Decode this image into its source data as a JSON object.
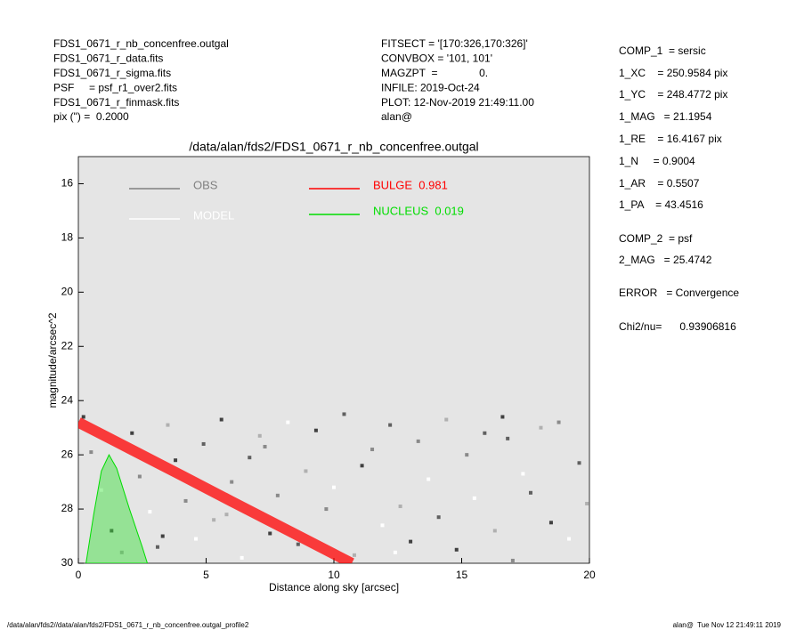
{
  "header": {
    "left": [
      "FDS1_0671_r_nb_concenfree.outgal",
      "FDS1_0671_r_data.fits",
      "FDS1_0671_r_sigma.fits",
      "PSF     = psf_r1_over2.fits",
      "FDS1_0671_r_finmask.fits",
      "pix (\") =  0.2000"
    ],
    "middle": [
      "FITSECT = '[170:326,170:326]'",
      "CONVBOX = '101, 101'",
      "MAGZPT  =              0.",
      "INFILE: 2019-Oct-24",
      "PLOT: 12-Nov-2019 21:49:11.00",
      "alan@"
    ],
    "right": [
      "COMP_1  = sersic",
      "1_XC    = 250.9584 pix",
      "1_YC    = 248.4772 pix",
      "1_MAG   = 21.1954",
      "1_RE    = 16.4167 pix",
      "1_N     = 0.9004",
      "1_AR    = 0.5507",
      "1_PA    = 43.4516",
      "COMP_2  = psf",
      "2_MAG   = 25.4742",
      "ERROR   = Convergence",
      "Chi2/nu=      0.93906816"
    ]
  },
  "footer": {
    "left": "/data/alan/fds2//data/alan/fds2/FDS1_0671_r_nb_concenfree.outgal_profile2",
    "right": "alan@  Tue Nov 12 21:49:11 2019"
  },
  "chart_data": {
    "type": "scatter",
    "title": "/data/alan/fds2/FDS1_0671_r_nb_concenfree.outgal",
    "xlabel": "Distance along sky [arcsec]",
    "ylabel": "magnitude/arcsec^2",
    "xlim": [
      0,
      20
    ],
    "xticks": [
      0,
      5,
      10,
      15,
      20
    ],
    "ylim": [
      30,
      15
    ],
    "yticks": [
      16,
      18,
      20,
      22,
      24,
      26,
      28,
      30
    ],
    "background": "#e5e5e5",
    "series": [
      {
        "name": "OBS",
        "color": "#808080",
        "kind": "points",
        "x": [
          0.2,
          0.5,
          0.9,
          1.3,
          1.7,
          2.1,
          2.4,
          2.8,
          3.1,
          3.5,
          3.8,
          4.2,
          4.6,
          4.9,
          5.3,
          5.6,
          6.0,
          6.4,
          6.7,
          7.1,
          7.5,
          7.8,
          8.2,
          8.6,
          8.9,
          9.3,
          9.7,
          10.0,
          10.4,
          10.8,
          11.1,
          11.5,
          11.9,
          12.2,
          12.6,
          13.0,
          13.3,
          13.7,
          14.1,
          14.4,
          14.8,
          15.2,
          15.5,
          15.9,
          16.3,
          16.6,
          17.0,
          17.4,
          17.7,
          18.1,
          18.5,
          18.8,
          19.2,
          19.6,
          19.9,
          3.3,
          7.3,
          12.4,
          16.8,
          5.8
        ],
        "values": [
          24.6,
          25.9,
          27.3,
          28.8,
          29.6,
          25.2,
          26.8,
          28.1,
          29.4,
          24.9,
          26.2,
          27.7,
          29.1,
          25.6,
          28.4,
          24.7,
          27.0,
          29.8,
          26.1,
          25.3,
          28.9,
          27.5,
          24.8,
          29.3,
          26.6,
          25.1,
          28.0,
          27.2,
          24.5,
          29.7,
          26.4,
          25.8,
          28.6,
          24.9,
          27.9,
          29.2,
          25.5,
          26.9,
          28.3,
          24.7,
          29.5,
          26.0,
          27.6,
          25.2,
          28.8,
          24.6,
          29.9,
          26.7,
          27.4,
          25.0,
          28.5,
          24.8,
          29.1,
          26.3,
          27.8,
          29.0,
          25.7,
          29.6,
          25.4,
          28.2
        ]
      },
      {
        "name": "MODEL",
        "color": "#ffffff"
      },
      {
        "name": "BULGE  0.981",
        "color": "#ff0000",
        "kind": "band",
        "x": [
          0,
          2,
          4,
          6,
          8,
          10,
          10.7
        ],
        "values": [
          24.8,
          25.77,
          26.74,
          27.72,
          28.69,
          29.66,
          30.0
        ]
      },
      {
        "name": "NUCLEUS  0.019",
        "color": "#00dd00",
        "kind": "area",
        "x": [
          0.3,
          0.6,
          0.9,
          1.2,
          1.5,
          2.0,
          2.5,
          2.7
        ],
        "values": [
          30,
          28.2,
          26.6,
          26.0,
          26.5,
          28.0,
          29.4,
          30
        ]
      }
    ]
  }
}
